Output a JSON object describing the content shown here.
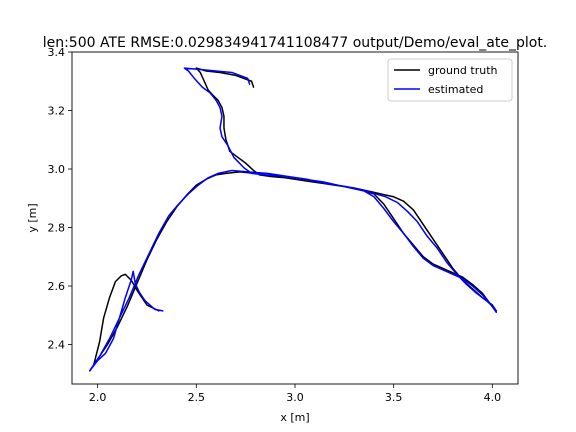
{
  "chart_data": {
    "type": "line",
    "title": "len:500 ATE RMSE:0.029834941741108477 output/Demo/eval_ate_plot.",
    "xlabel": "x [m]",
    "ylabel": "y [m]",
    "xlim": [
      1.87,
      4.13
    ],
    "ylim": [
      2.265,
      3.4
    ],
    "xticks": [
      2.0,
      2.5,
      3.0,
      3.5,
      4.0
    ],
    "xtick_labels": [
      "2.0",
      "2.5",
      "3.0",
      "3.5",
      "4.0"
    ],
    "yticks": [
      2.4,
      2.6,
      2.8,
      3.0,
      3.2,
      3.4
    ],
    "ytick_labels": [
      "2.4",
      "2.6",
      "2.8",
      "3.0",
      "3.2",
      "3.4"
    ],
    "grid": false,
    "legend_position": "top-right",
    "series": [
      {
        "name": "ground truth",
        "color": "#000000",
        "points": [
          [
            2.31,
            2.515
          ],
          [
            2.25,
            2.535
          ],
          [
            2.2,
            2.585
          ],
          [
            2.17,
            2.62
          ],
          [
            2.14,
            2.64
          ],
          [
            2.12,
            2.635
          ],
          [
            2.09,
            2.615
          ],
          [
            2.06,
            2.56
          ],
          [
            2.03,
            2.49
          ],
          [
            2.01,
            2.41
          ],
          [
            1.98,
            2.33
          ],
          [
            1.96,
            2.31
          ],
          [
            2.0,
            2.35
          ],
          [
            2.05,
            2.4
          ],
          [
            2.1,
            2.46
          ],
          [
            2.15,
            2.53
          ],
          [
            2.2,
            2.61
          ],
          [
            2.25,
            2.69
          ],
          [
            2.3,
            2.76
          ],
          [
            2.35,
            2.82
          ],
          [
            2.4,
            2.87
          ],
          [
            2.45,
            2.91
          ],
          [
            2.5,
            2.945
          ],
          [
            2.55,
            2.965
          ],
          [
            2.6,
            2.98
          ],
          [
            2.65,
            2.985
          ],
          [
            2.72,
            2.99
          ],
          [
            2.8,
            2.985
          ],
          [
            2.9,
            2.975
          ],
          [
            3.0,
            2.965
          ],
          [
            3.1,
            2.955
          ],
          [
            3.2,
            2.945
          ],
          [
            3.3,
            2.935
          ],
          [
            3.4,
            2.92
          ],
          [
            3.5,
            2.905
          ],
          [
            3.55,
            2.89
          ],
          [
            3.6,
            2.86
          ],
          [
            3.65,
            2.81
          ],
          [
            3.7,
            2.76
          ],
          [
            3.75,
            2.71
          ],
          [
            3.8,
            2.66
          ],
          [
            3.85,
            2.62
          ],
          [
            3.9,
            2.59
          ],
          [
            3.95,
            2.56
          ],
          [
            4.0,
            2.535
          ],
          [
            4.02,
            2.515
          ],
          [
            4.01,
            2.52
          ],
          [
            3.95,
            2.575
          ],
          [
            3.9,
            2.605
          ],
          [
            3.85,
            2.63
          ],
          [
            3.8,
            2.645
          ],
          [
            3.75,
            2.66
          ],
          [
            3.7,
            2.675
          ],
          [
            3.65,
            2.7
          ],
          [
            3.6,
            2.74
          ],
          [
            3.55,
            2.78
          ],
          [
            3.5,
            2.83
          ],
          [
            3.45,
            2.88
          ],
          [
            3.4,
            2.915
          ],
          [
            3.35,
            2.925
          ],
          [
            3.25,
            2.94
          ],
          [
            3.15,
            2.95
          ],
          [
            3.05,
            2.96
          ],
          [
            2.95,
            2.97
          ],
          [
            2.87,
            2.975
          ],
          [
            2.82,
            2.98
          ],
          [
            2.79,
            2.995
          ],
          [
            2.75,
            3.02
          ],
          [
            2.71,
            3.04
          ],
          [
            2.67,
            3.06
          ],
          [
            2.65,
            3.1
          ],
          [
            2.64,
            3.14
          ],
          [
            2.64,
            3.18
          ],
          [
            2.63,
            3.21
          ],
          [
            2.61,
            3.235
          ],
          [
            2.58,
            3.255
          ],
          [
            2.56,
            3.27
          ],
          [
            2.54,
            3.3
          ],
          [
            2.52,
            3.33
          ],
          [
            2.5,
            3.345
          ],
          [
            2.55,
            3.335
          ],
          [
            2.62,
            3.33
          ],
          [
            2.7,
            3.32
          ],
          [
            2.78,
            3.3
          ],
          [
            2.79,
            3.28
          ]
        ]
      },
      {
        "name": "estimated",
        "color": "#0000ff",
        "points": [
          [
            2.33,
            2.515
          ],
          [
            2.29,
            2.52
          ],
          [
            2.24,
            2.55
          ],
          [
            2.21,
            2.58
          ],
          [
            2.19,
            2.61
          ],
          [
            2.18,
            2.65
          ],
          [
            2.17,
            2.62
          ],
          [
            2.14,
            2.56
          ],
          [
            2.11,
            2.49
          ],
          [
            2.08,
            2.42
          ],
          [
            2.04,
            2.37
          ],
          [
            2.0,
            2.345
          ],
          [
            1.96,
            2.31
          ],
          [
            2.01,
            2.36
          ],
          [
            2.06,
            2.42
          ],
          [
            2.11,
            2.49
          ],
          [
            2.16,
            2.56
          ],
          [
            2.21,
            2.64
          ],
          [
            2.26,
            2.71
          ],
          [
            2.31,
            2.78
          ],
          [
            2.36,
            2.84
          ],
          [
            2.41,
            2.88
          ],
          [
            2.46,
            2.915
          ],
          [
            2.51,
            2.945
          ],
          [
            2.56,
            2.97
          ],
          [
            2.61,
            2.985
          ],
          [
            2.68,
            2.995
          ],
          [
            2.76,
            2.99
          ],
          [
            2.86,
            2.985
          ],
          [
            2.96,
            2.975
          ],
          [
            3.06,
            2.965
          ],
          [
            3.16,
            2.95
          ],
          [
            3.26,
            2.94
          ],
          [
            3.36,
            2.925
          ],
          [
            3.46,
            2.905
          ],
          [
            3.52,
            2.885
          ],
          [
            3.57,
            2.855
          ],
          [
            3.62,
            2.82
          ],
          [
            3.67,
            2.77
          ],
          [
            3.72,
            2.73
          ],
          [
            3.77,
            2.68
          ],
          [
            3.82,
            2.64
          ],
          [
            3.87,
            2.605
          ],
          [
            3.92,
            2.575
          ],
          [
            3.97,
            2.55
          ],
          [
            4.01,
            2.525
          ],
          [
            4.02,
            2.51
          ],
          [
            4.0,
            2.53
          ],
          [
            3.95,
            2.57
          ],
          [
            3.9,
            2.6
          ],
          [
            3.85,
            2.625
          ],
          [
            3.8,
            2.64
          ],
          [
            3.75,
            2.655
          ],
          [
            3.7,
            2.67
          ],
          [
            3.65,
            2.695
          ],
          [
            3.6,
            2.735
          ],
          [
            3.55,
            2.78
          ],
          [
            3.5,
            2.82
          ],
          [
            3.45,
            2.865
          ],
          [
            3.4,
            2.905
          ],
          [
            3.35,
            2.925
          ],
          [
            3.25,
            2.94
          ],
          [
            3.15,
            2.955
          ],
          [
            3.05,
            2.965
          ],
          [
            2.95,
            2.975
          ],
          [
            2.85,
            2.98
          ],
          [
            2.78,
            2.985
          ],
          [
            2.74,
            3.005
          ],
          [
            2.69,
            3.04
          ],
          [
            2.66,
            3.08
          ],
          [
            2.63,
            3.11
          ],
          [
            2.62,
            3.14
          ],
          [
            2.63,
            3.18
          ],
          [
            2.62,
            3.21
          ],
          [
            2.6,
            3.235
          ],
          [
            2.57,
            3.26
          ],
          [
            2.53,
            3.28
          ],
          [
            2.49,
            3.31
          ],
          [
            2.46,
            3.335
          ],
          [
            2.44,
            3.345
          ],
          [
            2.52,
            3.34
          ],
          [
            2.6,
            3.335
          ],
          [
            2.68,
            3.33
          ],
          [
            2.76,
            3.31
          ],
          [
            2.77,
            3.29
          ]
        ]
      }
    ]
  }
}
